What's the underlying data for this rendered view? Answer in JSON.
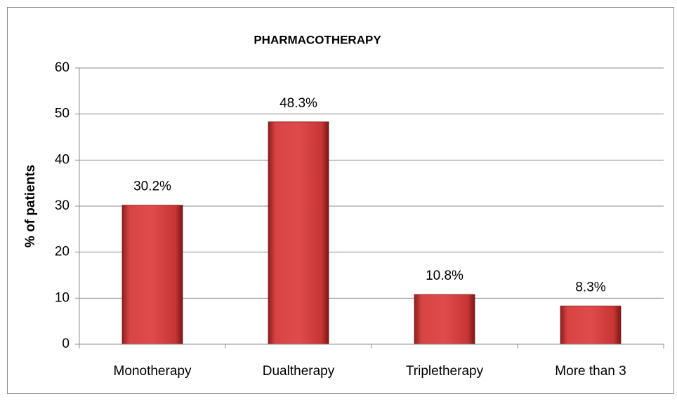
{
  "chart_data": {
    "type": "bar",
    "title": "PHARMACOTHERAPY",
    "y_label": "% of patients",
    "categories": [
      "Monotherapy",
      "Dualtherapy",
      "Tripletherapy",
      "More than 3"
    ],
    "values": [
      30.2,
      48.3,
      10.8,
      8.3
    ],
    "value_labels": [
      "30.2%",
      "48.3%",
      "10.8%",
      "8.3%"
    ],
    "color": "#d03a3a",
    "ylim": [
      0,
      60
    ],
    "yticks": [
      0,
      10,
      20,
      30,
      40,
      50,
      60
    ],
    "grid": true
  }
}
